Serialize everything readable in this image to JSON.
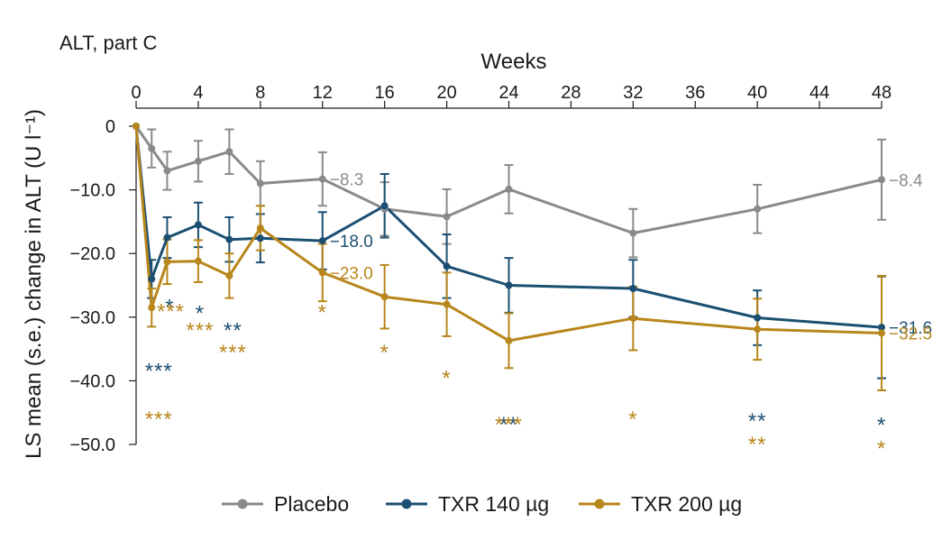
{
  "chart_data": {
    "type": "line",
    "panel_title": "ALT, part C",
    "xlabel": "Weeks",
    "ylabel": "LS mean (s.e.) change in ALT (U l⁻¹)",
    "xlim": [
      0,
      48
    ],
    "ylim": [
      -50,
      0
    ],
    "x_ticks": [
      0,
      4,
      8,
      12,
      16,
      20,
      24,
      28,
      32,
      36,
      40,
      44,
      48
    ],
    "y_ticks": [
      {
        "value": 0,
        "label": "0"
      },
      {
        "value": -10,
        "label": "−10.0"
      },
      {
        "value": -20,
        "label": "−20.0"
      },
      {
        "value": -30,
        "label": "−30.0"
      },
      {
        "value": -40,
        "label": "−40.0"
      },
      {
        "value": -50,
        "label": "−50.0"
      }
    ],
    "series": [
      {
        "name": "Placebo",
        "color": "#8a8a8a",
        "x": [
          0,
          1,
          2,
          4,
          6,
          8,
          12,
          16,
          20,
          24,
          32,
          40,
          48
        ],
        "y": [
          0,
          -3.5,
          -7.0,
          -5.5,
          -4.0,
          -9.0,
          -8.3,
          -13.0,
          -14.2,
          -9.9,
          -16.8,
          -13.0,
          -8.4
        ],
        "se": [
          0,
          3.0,
          3.0,
          3.2,
          3.5,
          3.5,
          4.2,
          4.2,
          4.3,
          3.8,
          3.8,
          3.8,
          6.3
        ],
        "end_labels": [
          {
            "x": 12,
            "text": "−8.3"
          },
          {
            "x": 48,
            "text": "−8.4"
          }
        ]
      },
      {
        "name": "TXR 140 µg",
        "color": "#1b4f72",
        "x": [
          0,
          1,
          2,
          4,
          6,
          8,
          12,
          16,
          20,
          24,
          32,
          40,
          48
        ],
        "y": [
          0,
          -24.0,
          -17.5,
          -15.5,
          -17.8,
          -17.6,
          -18.0,
          -12.5,
          -22.0,
          -25.0,
          -25.5,
          -30.1,
          -31.6
        ],
        "se": [
          0,
          3.0,
          3.2,
          3.5,
          3.5,
          3.8,
          4.5,
          5.0,
          5.0,
          4.3,
          4.5,
          4.3,
          8.0
        ],
        "end_labels": [
          {
            "x": 12,
            "text": "−18.0"
          },
          {
            "x": 48,
            "text": "−31.6"
          }
        ],
        "significance": [
          {
            "x": 1,
            "text": "***"
          },
          {
            "x": 2,
            "text": "*"
          },
          {
            "x": 4,
            "text": "*"
          },
          {
            "x": 6,
            "text": "**"
          },
          {
            "x": 24,
            "text": "**"
          },
          {
            "x": 40,
            "text": "**"
          },
          {
            "x": 48,
            "text": "*"
          }
        ]
      },
      {
        "name": "TXR 200 µg",
        "color": "#b8861b",
        "x": [
          0,
          1,
          2,
          4,
          6,
          8,
          12,
          16,
          20,
          24,
          32,
          40,
          48
        ],
        "y": [
          0,
          -28.5,
          -21.3,
          -21.2,
          -23.5,
          -16.0,
          -23.0,
          -26.8,
          -28.0,
          -33.7,
          -30.2,
          -31.9,
          -32.5
        ],
        "se": [
          0,
          3.0,
          3.5,
          3.3,
          3.5,
          3.5,
          4.5,
          5.0,
          5.0,
          4.3,
          5.0,
          4.8,
          9.0
        ],
        "end_labels": [
          {
            "x": 12,
            "text": "−23.0"
          },
          {
            "x": 48,
            "text": "−32.5"
          }
        ],
        "significance": [
          {
            "x": 1,
            "text": "***"
          },
          {
            "x": 2,
            "text": "***"
          },
          {
            "x": 4,
            "text": "***"
          },
          {
            "x": 6,
            "text": "***"
          },
          {
            "x": 12,
            "text": "*"
          },
          {
            "x": 16,
            "text": "*"
          },
          {
            "x": 20,
            "text": "*"
          },
          {
            "x": 24,
            "text": "***"
          },
          {
            "x": 32,
            "text": "*"
          },
          {
            "x": 40,
            "text": "**"
          },
          {
            "x": 48,
            "text": "*"
          }
        ]
      }
    ],
    "legend": {
      "position": "bottom-center"
    }
  }
}
